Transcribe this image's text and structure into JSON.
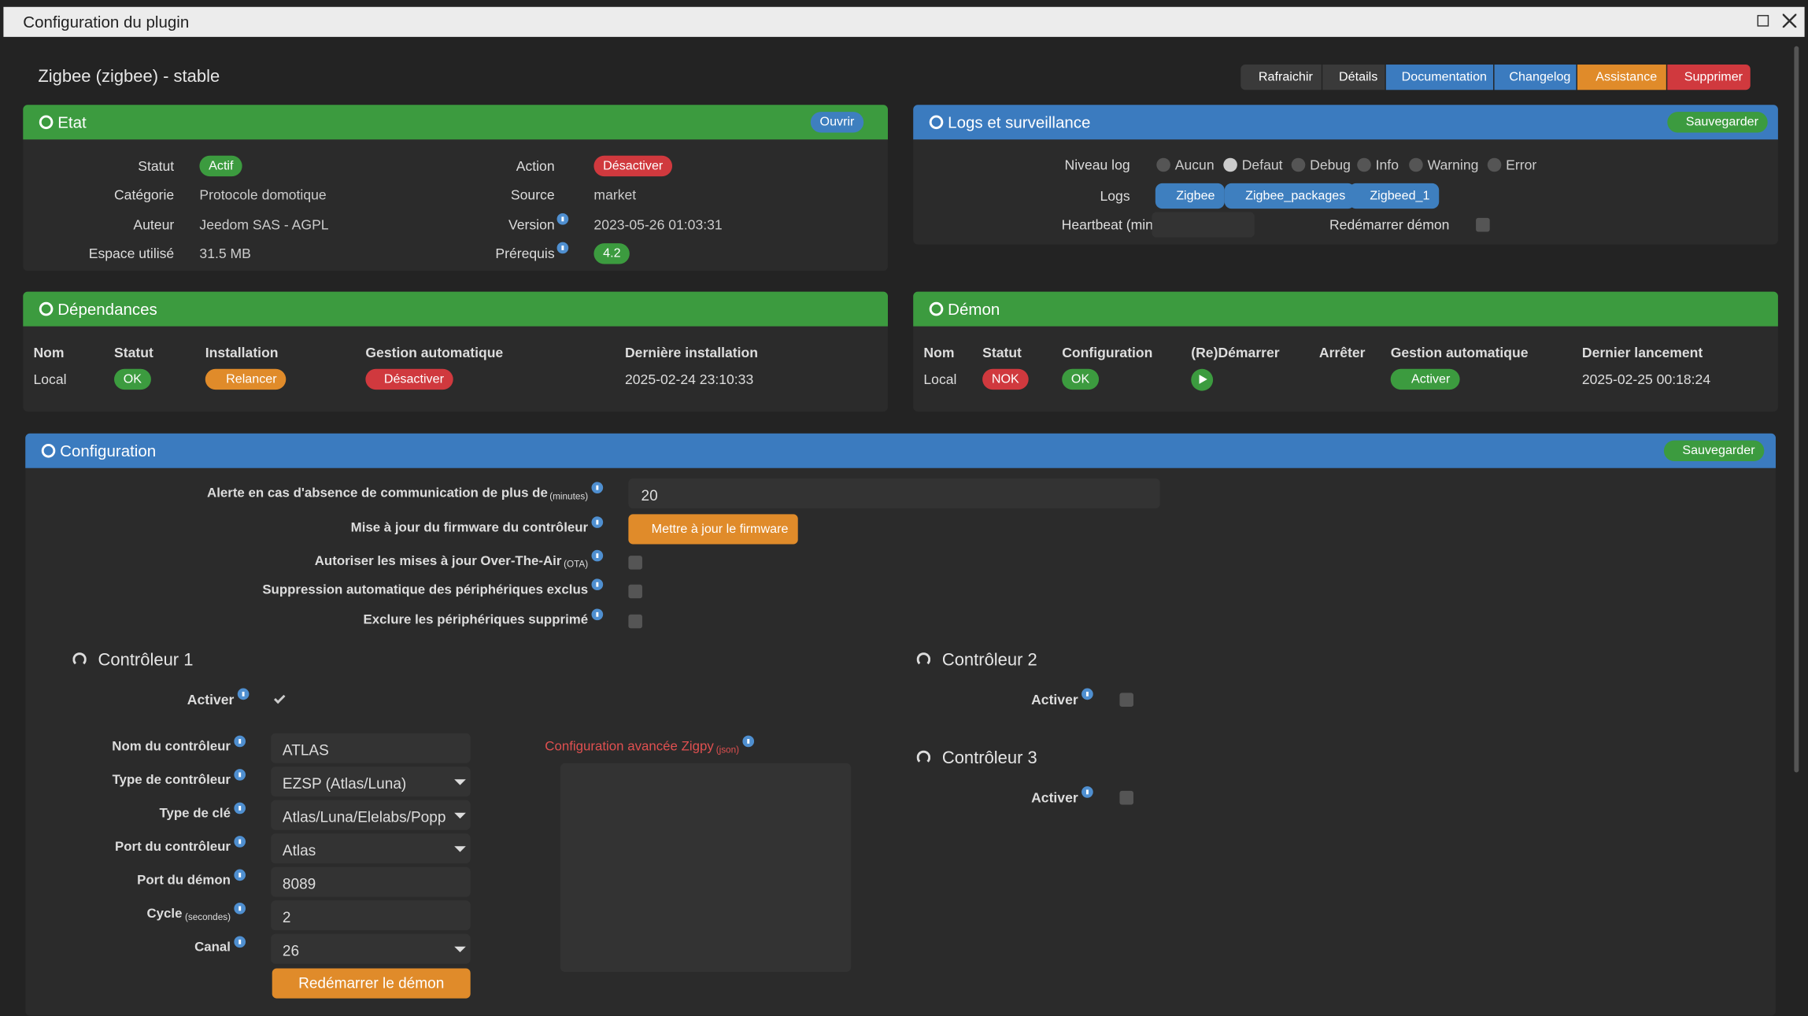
{
  "window": {
    "title": "Configuration du plugin"
  },
  "header": {
    "title": "Zigbee (zigbee) - stable",
    "buttons": [
      "Rafraichir",
      "Détails",
      "Documentation",
      "Changelog",
      "Assistance",
      "Supprimer"
    ]
  },
  "etat": {
    "title": "Etat",
    "button": "Ouvrir",
    "left": [
      {
        "label": "Statut",
        "value": "Actif"
      },
      {
        "label": "Catégorie",
        "value": "Protocole domotique"
      },
      {
        "label": "Auteur",
        "value": "Jeedom SAS - AGPL"
      },
      {
        "label": "Espace utilisé",
        "value": "31.5 MB"
      }
    ],
    "right": [
      {
        "label": "Action",
        "value": "Désactiver"
      },
      {
        "label": "Source",
        "value": "market"
      },
      {
        "label": "Version",
        "value": "2023-05-26 01:03:31"
      },
      {
        "label": "Prérequis",
        "value": "4.2"
      }
    ]
  },
  "logs": {
    "title": "Logs et surveillance",
    "button": "Sauvegarder",
    "level_label": "Niveau log",
    "levels": [
      "Aucun",
      "Defaut",
      "Debug",
      "Info",
      "Warning",
      "Error"
    ],
    "selected": 1,
    "logs_label": "Logs",
    "logs": [
      "Zigbee",
      "Zigbee_packages",
      "Zigbeed_1"
    ],
    "heartbeat_label": "Heartbeat (min)",
    "restart_label": "Redémarrer démon"
  },
  "dependances": {
    "title": "Dépendances",
    "columns": [
      "Nom",
      "Statut",
      "Installation",
      "Gestion automatique",
      "Dernière installation"
    ],
    "row": [
      "Local",
      "OK",
      "Relancer",
      "Désactiver",
      "2025-02-24 23:10:33"
    ]
  },
  "demon": {
    "title": "Démon",
    "columns": [
      "Nom",
      "Statut",
      "Configuration",
      "(Re)Démarrer",
      "Arrêter",
      "Gestion automatique",
      "Dernier lancement"
    ],
    "row": [
      "Local",
      "NOK",
      "OK",
      null,
      null,
      "Activer",
      "2025-02-25 00:18:24"
    ]
  },
  "configuration": {
    "title": "Configuration",
    "button": "Sauvegarder",
    "options": [
      {
        "label": "Alerte en cas d'absence de communication de plus de",
        "unit": "(minutes)",
        "value": "20"
      },
      {
        "label": "Mise à jour du firmware du contrôleur",
        "button": "Mettre à jour le firmware"
      },
      {
        "label": "Autoriser les mises à jour Over-The-Air",
        "unit": "(OTA)"
      },
      {
        "label": "Suppression automatique des périphériques exclus"
      },
      {
        "label": "Exclure les périphériques supprimé"
      }
    ],
    "controllers": [
      {
        "title": "Contrôleur 1",
        "active_label": "Activer",
        "active": true,
        "fields": [
          {
            "label": "Nom du contrôleur",
            "value": "ATLAS"
          },
          {
            "label": "Type de contrôleur",
            "value": "EZSP (Atlas/Luna)",
            "select": true
          },
          {
            "label": "Type de clé",
            "value": "Atlas/Luna/Elelabs/Popp",
            "select": true
          },
          {
            "label": "Port du contrôleur",
            "value": "Atlas",
            "select": true
          },
          {
            "label": "Port du démon",
            "value": "8089"
          },
          {
            "label": "Cycle",
            "unit": "(secondes)",
            "value": "2"
          },
          {
            "label": "Canal",
            "value": "26",
            "select": true
          }
        ],
        "advanced_label": "Configuration avancée Zigpy",
        "advanced_unit": "(json)",
        "restart_button": "Redémarrer le démon"
      },
      {
        "title": "Contrôleur 2",
        "active_label": "Activer",
        "active": false
      },
      {
        "title": "Contrôleur 3",
        "active_label": "Activer",
        "active": false
      }
    ]
  }
}
